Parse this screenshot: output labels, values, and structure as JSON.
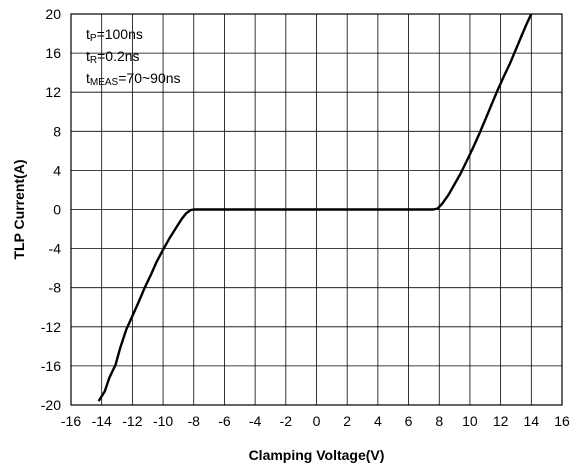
{
  "chart_data": {
    "type": "line",
    "xlabel": "Clamping Voltage(V)",
    "ylabel": "TLP Current(A)",
    "xlim": [
      -16,
      16
    ],
    "ylim": [
      -20,
      20
    ],
    "x_ticks": [
      -16,
      -14,
      -12,
      -10,
      -8,
      -6,
      -4,
      -2,
      0,
      2,
      4,
      6,
      8,
      10,
      12,
      14,
      16
    ],
    "y_ticks": [
      20,
      16,
      12,
      8,
      4,
      0,
      -4,
      -8,
      -12,
      -16,
      -20
    ],
    "grid": true,
    "annotations": [
      {
        "main": "t",
        "sub": "P",
        "rest": "=100ns"
      },
      {
        "main": "t",
        "sub": "R",
        "rest": "=0.2ns"
      },
      {
        "main": "t",
        "sub": "MEAS",
        "rest": "=70~90ns"
      }
    ],
    "series": [
      {
        "color": "#000000",
        "x": [
          -14.2,
          -13.8,
          -13.5,
          -13.1,
          -12.8,
          -12.4,
          -12.0,
          -11.6,
          -11.2,
          -10.8,
          -10.4,
          -10.0,
          -9.6,
          -9.2,
          -8.8,
          -8.5,
          -8.2,
          -8.0,
          -6.0,
          -4.0,
          -2.0,
          0.0,
          2.0,
          4.0,
          6.0,
          7.6,
          7.9,
          8.2,
          8.6,
          9.0,
          9.4,
          9.8,
          10.2,
          10.6,
          11.0,
          11.4,
          11.8,
          12.2,
          12.6,
          13.0,
          13.4,
          13.7,
          14.0
        ],
        "y": [
          -19.6,
          -18.6,
          -17.2,
          -15.9,
          -14.2,
          -12.3,
          -10.9,
          -9.5,
          -8.0,
          -6.7,
          -5.3,
          -4.1,
          -3.0,
          -2.0,
          -1.0,
          -0.4,
          -0.05,
          0.0,
          0.0,
          0.0,
          0.0,
          0.0,
          0.0,
          0.0,
          0.0,
          0.0,
          0.1,
          0.6,
          1.5,
          2.6,
          3.7,
          5.0,
          6.3,
          7.7,
          9.2,
          10.7,
          12.2,
          13.6,
          14.9,
          16.4,
          17.9,
          19.0,
          20.0
        ]
      }
    ]
  }
}
